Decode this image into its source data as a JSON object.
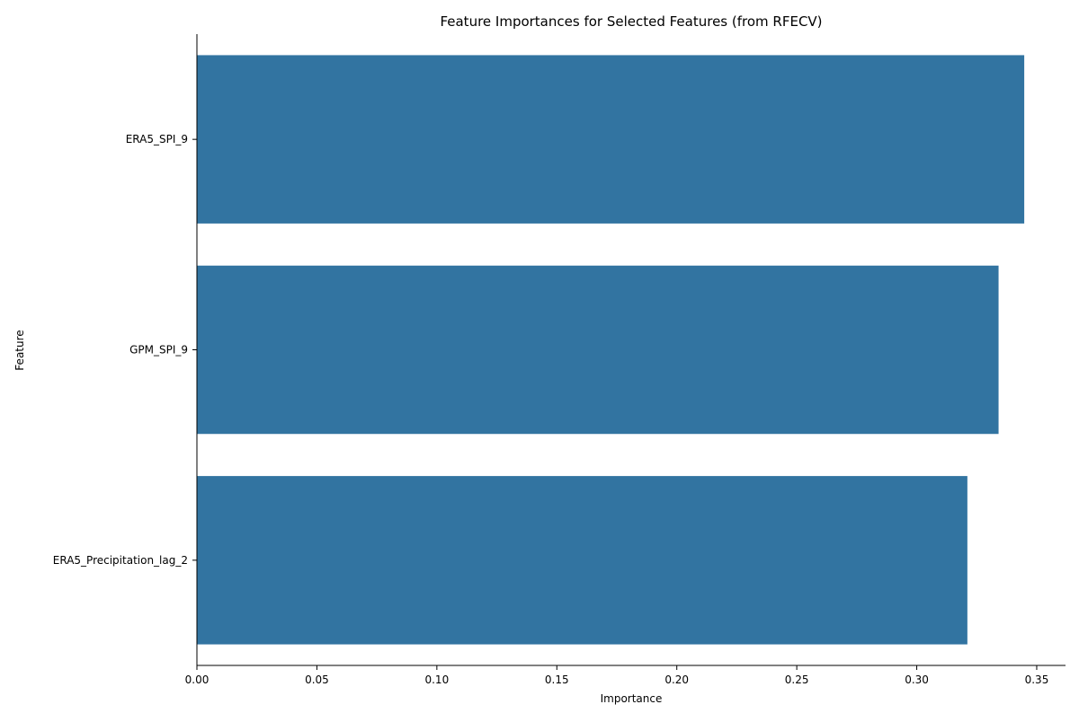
{
  "chart_data": {
    "type": "bar",
    "orientation": "horizontal",
    "title": "Feature Importances for Selected Features (from RFECV)",
    "xlabel": "Importance",
    "ylabel": "Feature",
    "categories": [
      "ERA5_SPI_9",
      "GPM_SPI_9",
      "ERA5_Precipitation_lag_2"
    ],
    "values": [
      0.3448,
      0.3341,
      0.3211
    ],
    "xlim": [
      0,
      0.362
    ],
    "xticks": [
      0.0,
      0.05,
      0.1,
      0.15,
      0.2,
      0.25,
      0.3,
      0.35
    ],
    "xtick_labels": [
      "0.00",
      "0.05",
      "0.10",
      "0.15",
      "0.20",
      "0.25",
      "0.30",
      "0.35"
    ],
    "bar_color": "#3274a1",
    "grid": false,
    "legend": "none"
  }
}
